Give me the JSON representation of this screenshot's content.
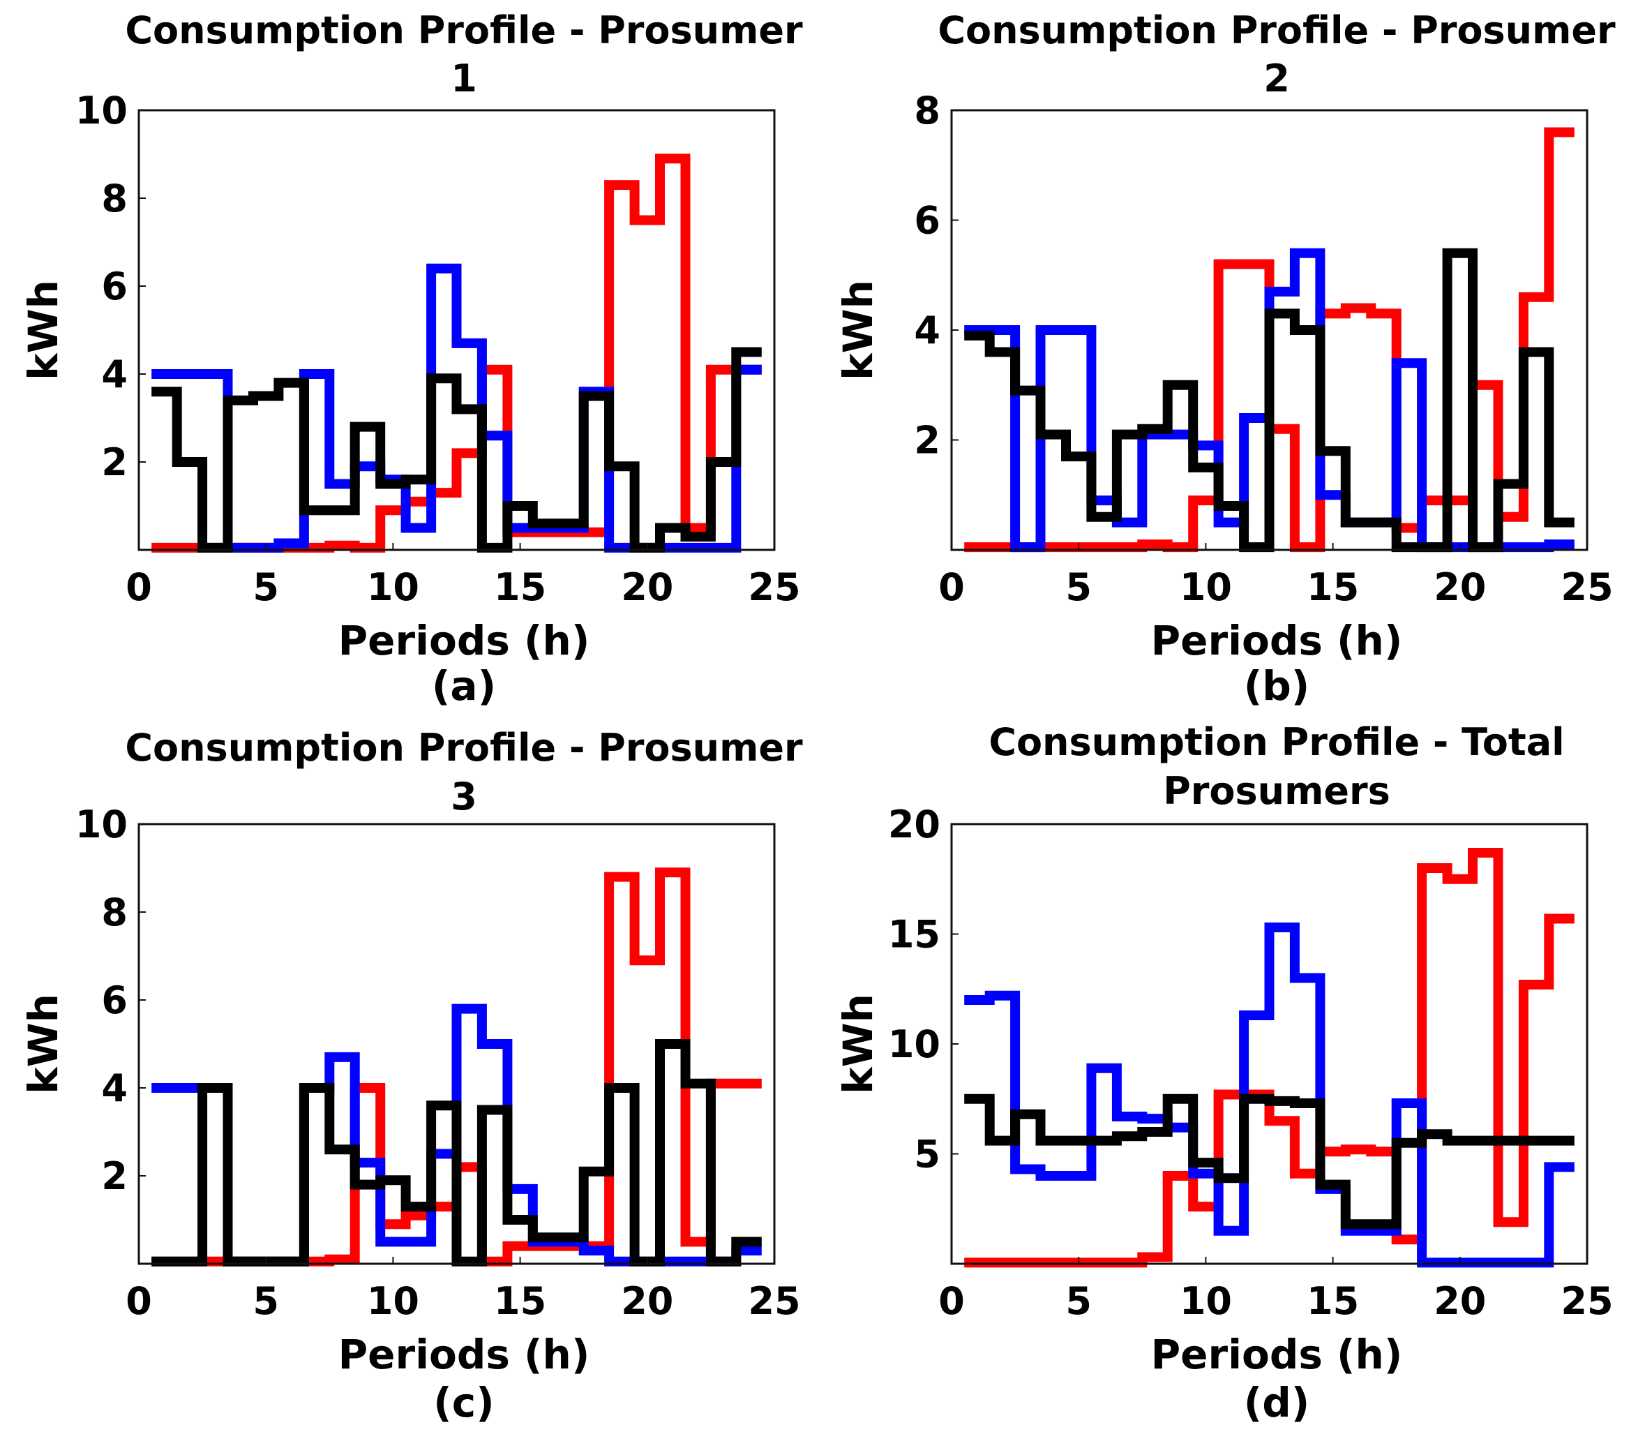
{
  "chart_data": [
    {
      "type": "line",
      "step": true,
      "title": "Consumption Profile - Prosumer",
      "title_line2": "1",
      "xlabel": "Periods (h)",
      "ylabel": "kWh",
      "caption": "(a)",
      "xlim": [
        0,
        25
      ],
      "ylim": [
        0,
        10
      ],
      "xticks": [
        "0",
        "5",
        "10",
        "15",
        "20",
        "25"
      ],
      "yticks": [
        "2",
        "4",
        "6",
        "8",
        "10"
      ],
      "ytick_values": [
        2,
        4,
        6,
        8,
        10
      ],
      "x": [
        1,
        2,
        3,
        4,
        5,
        6,
        7,
        8,
        9,
        10,
        11,
        12,
        13,
        14,
        15,
        16,
        17,
        18,
        19,
        20,
        21,
        22,
        23,
        24
      ],
      "series": [
        {
          "name": "red",
          "color": "#ff0000",
          "values": [
            0.05,
            0.05,
            0.05,
            0.05,
            0.05,
            0.05,
            0.05,
            0.1,
            0.05,
            0.9,
            1.1,
            1.3,
            2.2,
            4.1,
            0.4,
            0.4,
            0.4,
            0.4,
            8.3,
            7.5,
            8.9,
            0.5,
            4.1,
            4.1
          ]
        },
        {
          "name": "blue",
          "color": "#0000ff",
          "values": [
            4.0,
            4.0,
            4.0,
            0.05,
            0.05,
            0.15,
            4.0,
            1.5,
            1.9,
            1.6,
            0.5,
            6.4,
            4.7,
            2.6,
            0.5,
            0.5,
            0.5,
            3.6,
            0.05,
            0.05,
            0.05,
            0.05,
            0.05,
            4.1
          ]
        },
        {
          "name": "black",
          "color": "#000000",
          "values": [
            3.6,
            2.0,
            0.05,
            3.4,
            3.5,
            3.8,
            0.9,
            0.9,
            2.8,
            1.5,
            1.6,
            3.9,
            3.2,
            0.05,
            1.0,
            0.6,
            0.6,
            3.5,
            1.9,
            0.05,
            0.5,
            0.3,
            2.0,
            4.5
          ]
        }
      ]
    },
    {
      "type": "line",
      "step": true,
      "title": "Consumption Profile - Prosumer",
      "title_line2": "2",
      "xlabel": "Periods (h)",
      "ylabel": "kWh",
      "caption": "(b)",
      "xlim": [
        0,
        25
      ],
      "ylim": [
        0,
        8
      ],
      "xticks": [
        "0",
        "5",
        "10",
        "15",
        "20",
        "25"
      ],
      "yticks": [
        "2",
        "4",
        "6",
        "8"
      ],
      "ytick_values": [
        2,
        4,
        6,
        8
      ],
      "x": [
        1,
        2,
        3,
        4,
        5,
        6,
        7,
        8,
        9,
        10,
        11,
        12,
        13,
        14,
        15,
        16,
        17,
        18,
        19,
        20,
        21,
        22,
        23,
        24
      ],
      "series": [
        {
          "name": "red",
          "color": "#ff0000",
          "values": [
            0.05,
            0.05,
            0.05,
            0.05,
            0.05,
            0.05,
            0.05,
            0.1,
            0.05,
            0.9,
            5.2,
            5.2,
            2.2,
            0.05,
            4.3,
            4.4,
            4.3,
            0.4,
            0.9,
            0.9,
            3.0,
            0.6,
            4.6,
            7.6
          ]
        },
        {
          "name": "blue",
          "color": "#0000ff",
          "values": [
            4.0,
            4.0,
            0.05,
            4.0,
            4.0,
            0.9,
            0.5,
            2.1,
            2.1,
            1.9,
            0.5,
            2.4,
            4.7,
            5.4,
            1.0,
            0.5,
            0.5,
            3.4,
            0.05,
            0.05,
            0.05,
            0.05,
            0.05,
            0.1
          ]
        },
        {
          "name": "black",
          "color": "#000000",
          "values": [
            3.9,
            3.6,
            2.9,
            2.1,
            1.7,
            0.6,
            2.1,
            2.2,
            3.0,
            1.5,
            0.8,
            0.05,
            4.3,
            4.0,
            1.8,
            0.5,
            0.5,
            0.05,
            0.05,
            5.4,
            0.05,
            1.2,
            3.6,
            0.5
          ]
        }
      ]
    },
    {
      "type": "line",
      "step": true,
      "title": "Consumption Profile - Prosumer",
      "title_line2": "3",
      "xlabel": "Periods (h)",
      "ylabel": "kWh",
      "caption": "(c)",
      "xlim": [
        0,
        25
      ],
      "ylim": [
        0,
        10
      ],
      "xticks": [
        "0",
        "5",
        "10",
        "15",
        "20",
        "25"
      ],
      "yticks": [
        "2",
        "4",
        "6",
        "8",
        "10"
      ],
      "ytick_values": [
        2,
        4,
        6,
        8,
        10
      ],
      "x": [
        1,
        2,
        3,
        4,
        5,
        6,
        7,
        8,
        9,
        10,
        11,
        12,
        13,
        14,
        15,
        16,
        17,
        18,
        19,
        20,
        21,
        22,
        23,
        24
      ],
      "series": [
        {
          "name": "red",
          "color": "#ff0000",
          "values": [
            0.05,
            0.05,
            0.05,
            0.05,
            0.05,
            0.05,
            0.05,
            0.1,
            4.0,
            0.9,
            1.1,
            1.3,
            2.2,
            0.05,
            0.4,
            0.4,
            0.4,
            0.4,
            8.8,
            6.9,
            8.9,
            0.5,
            4.1,
            4.1
          ]
        },
        {
          "name": "blue",
          "color": "#0000ff",
          "values": [
            4.0,
            4.0,
            4.0,
            0.05,
            0.05,
            0.05,
            4.0,
            4.7,
            2.3,
            0.5,
            0.5,
            2.5,
            5.8,
            5.0,
            1.7,
            0.5,
            0.5,
            0.3,
            0.05,
            0.05,
            0.05,
            0.05,
            0.05,
            0.3
          ]
        },
        {
          "name": "black",
          "color": "#000000",
          "values": [
            0.05,
            0.05,
            4.0,
            0.05,
            0.05,
            0.05,
            4.0,
            2.6,
            1.8,
            1.9,
            1.3,
            3.6,
            0.05,
            3.5,
            1.0,
            0.6,
            0.6,
            2.1,
            4.0,
            0.05,
            5.0,
            4.1,
            0.05,
            0.5
          ]
        }
      ]
    },
    {
      "type": "line",
      "step": true,
      "title": "Consumption Profile - Total",
      "title_line2": "Prosumers",
      "xlabel": "Periods (h)",
      "ylabel": "kWh",
      "caption": "(d)",
      "xlim": [
        0,
        25
      ],
      "ylim": [
        0,
        20
      ],
      "xticks": [
        "0",
        "5",
        "10",
        "15",
        "20",
        "25"
      ],
      "yticks": [
        "5",
        "10",
        "15",
        "20"
      ],
      "ytick_values": [
        5,
        10,
        15,
        20
      ],
      "x": [
        1,
        2,
        3,
        4,
        5,
        6,
        7,
        8,
        9,
        10,
        11,
        12,
        13,
        14,
        15,
        16,
        17,
        18,
        19,
        20,
        21,
        22,
        23,
        24
      ],
      "series": [
        {
          "name": "red",
          "color": "#ff0000",
          "values": [
            0.05,
            0.05,
            0.05,
            0.05,
            0.05,
            0.05,
            0.05,
            0.3,
            4.0,
            2.6,
            7.7,
            7.7,
            6.5,
            4.1,
            5.1,
            5.2,
            5.1,
            1.1,
            18.0,
            17.5,
            18.7,
            1.9,
            12.7,
            15.7
          ]
        },
        {
          "name": "blue",
          "color": "#0000ff",
          "values": [
            12.0,
            12.2,
            4.3,
            4.0,
            4.0,
            8.9,
            6.7,
            6.6,
            6.2,
            4.1,
            1.5,
            11.3,
            15.3,
            13.0,
            3.4,
            1.5,
            1.5,
            7.3,
            0.05,
            0.05,
            0.05,
            0.05,
            0.05,
            4.4
          ]
        },
        {
          "name": "black",
          "color": "#000000",
          "values": [
            7.5,
            5.6,
            6.8,
            5.6,
            5.6,
            5.6,
            5.8,
            6.0,
            7.5,
            4.6,
            3.9,
            7.5,
            7.4,
            7.3,
            3.6,
            1.8,
            1.8,
            5.5,
            5.9,
            5.6,
            5.6,
            5.6,
            5.6,
            5.6
          ]
        }
      ]
    }
  ]
}
